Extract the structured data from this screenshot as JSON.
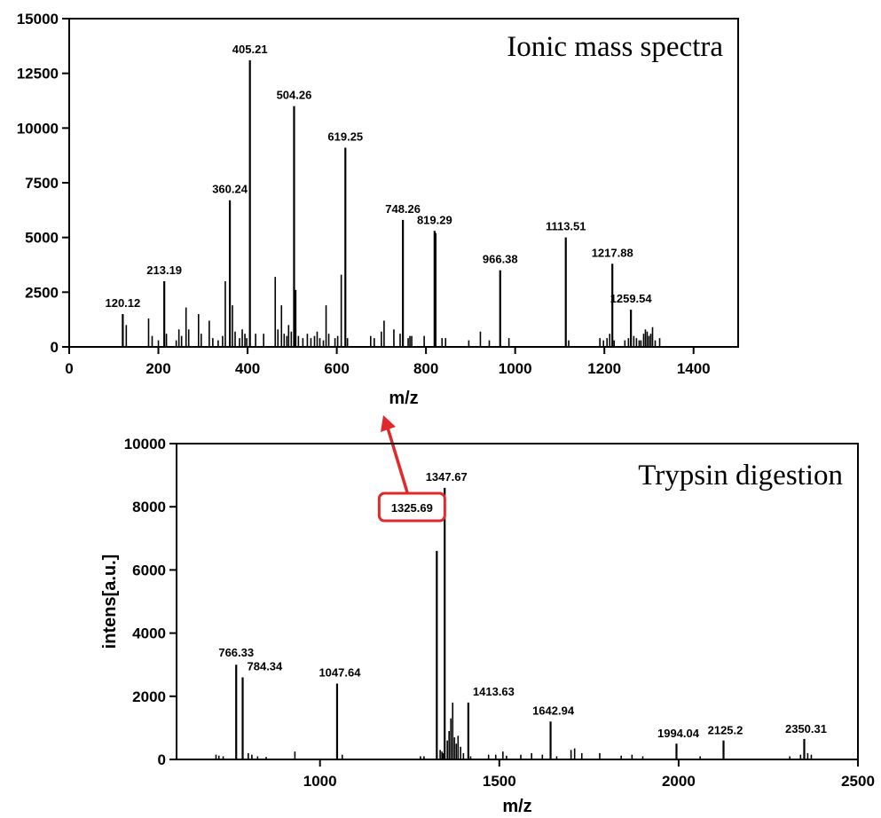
{
  "chart_data": [
    {
      "type": "bar",
      "title": "Ionic mass spectra",
      "xlabel": "m/z",
      "ylabel": "",
      "xlim": [
        0,
        1500
      ],
      "ylim": [
        0,
        15000
      ],
      "xticks": [
        "0",
        "200",
        "400",
        "600",
        "800",
        "1000",
        "1200",
        "1400"
      ],
      "yticks": [
        "0",
        "2500",
        "5000",
        "7500",
        "10000",
        "12500",
        "15000"
      ],
      "grid": false,
      "labeled_peaks": [
        {
          "x": 120.12,
          "y": 1500,
          "label": "120.12"
        },
        {
          "x": 213.19,
          "y": 3000,
          "label": "213.19"
        },
        {
          "x": 360.24,
          "y": 6700,
          "label": "360.24"
        },
        {
          "x": 405.21,
          "y": 13100,
          "label": "405.21"
        },
        {
          "x": 504.26,
          "y": 11000,
          "label": "504.26"
        },
        {
          "x": 619.25,
          "y": 9100,
          "label": "619.25"
        },
        {
          "x": 748.26,
          "y": 5800,
          "label": "748.26"
        },
        {
          "x": 819.29,
          "y": 5300,
          "label": "819.29"
        },
        {
          "x": 966.38,
          "y": 3500,
          "label": "966.38"
        },
        {
          "x": 1113.51,
          "y": 5000,
          "label": "1113.51"
        },
        {
          "x": 1217.88,
          "y": 3800,
          "label": "1217.88"
        },
        {
          "x": 1259.54,
          "y": 1700,
          "label": "1259.54"
        }
      ],
      "minor_peaks": [
        {
          "x": 128,
          "y": 1000
        },
        {
          "x": 178,
          "y": 1300
        },
        {
          "x": 186,
          "y": 500
        },
        {
          "x": 200,
          "y": 300
        },
        {
          "x": 218,
          "y": 600
        },
        {
          "x": 240,
          "y": 300
        },
        {
          "x": 246,
          "y": 800
        },
        {
          "x": 252,
          "y": 500
        },
        {
          "x": 262,
          "y": 1800
        },
        {
          "x": 268,
          "y": 800
        },
        {
          "x": 290,
          "y": 1500
        },
        {
          "x": 296,
          "y": 600
        },
        {
          "x": 314,
          "y": 1200
        },
        {
          "x": 322,
          "y": 400
        },
        {
          "x": 334,
          "y": 300
        },
        {
          "x": 344,
          "y": 500
        },
        {
          "x": 350,
          "y": 3000
        },
        {
          "x": 366,
          "y": 1900
        },
        {
          "x": 372,
          "y": 700
        },
        {
          "x": 382,
          "y": 400
        },
        {
          "x": 388,
          "y": 800
        },
        {
          "x": 394,
          "y": 600
        },
        {
          "x": 398,
          "y": 400
        },
        {
          "x": 418,
          "y": 600
        },
        {
          "x": 436,
          "y": 600
        },
        {
          "x": 462,
          "y": 3200
        },
        {
          "x": 468,
          "y": 800
        },
        {
          "x": 476,
          "y": 1900
        },
        {
          "x": 482,
          "y": 600
        },
        {
          "x": 488,
          "y": 500
        },
        {
          "x": 492,
          "y": 1000
        },
        {
          "x": 498,
          "y": 700
        },
        {
          "x": 508,
          "y": 2600
        },
        {
          "x": 514,
          "y": 500
        },
        {
          "x": 524,
          "y": 400
        },
        {
          "x": 534,
          "y": 600
        },
        {
          "x": 542,
          "y": 400
        },
        {
          "x": 550,
          "y": 500
        },
        {
          "x": 556,
          "y": 700
        },
        {
          "x": 562,
          "y": 400
        },
        {
          "x": 570,
          "y": 300
        },
        {
          "x": 576,
          "y": 1900
        },
        {
          "x": 582,
          "y": 600
        },
        {
          "x": 596,
          "y": 400
        },
        {
          "x": 602,
          "y": 500
        },
        {
          "x": 610,
          "y": 3300
        },
        {
          "x": 624,
          "y": 400
        },
        {
          "x": 676,
          "y": 500
        },
        {
          "x": 684,
          "y": 400
        },
        {
          "x": 700,
          "y": 700
        },
        {
          "x": 706,
          "y": 1200
        },
        {
          "x": 728,
          "y": 800
        },
        {
          "x": 742,
          "y": 600
        },
        {
          "x": 760,
          "y": 400
        },
        {
          "x": 764,
          "y": 500
        },
        {
          "x": 768,
          "y": 500
        },
        {
          "x": 796,
          "y": 500
        },
        {
          "x": 822,
          "y": 5200
        },
        {
          "x": 836,
          "y": 400
        },
        {
          "x": 844,
          "y": 400
        },
        {
          "x": 896,
          "y": 300
        },
        {
          "x": 922,
          "y": 700
        },
        {
          "x": 942,
          "y": 300
        },
        {
          "x": 986,
          "y": 400
        },
        {
          "x": 1120,
          "y": 300
        },
        {
          "x": 1190,
          "y": 400
        },
        {
          "x": 1198,
          "y": 300
        },
        {
          "x": 1206,
          "y": 400
        },
        {
          "x": 1212,
          "y": 600
        },
        {
          "x": 1222,
          "y": 300
        },
        {
          "x": 1246,
          "y": 300
        },
        {
          "x": 1254,
          "y": 400
        },
        {
          "x": 1266,
          "y": 500
        },
        {
          "x": 1272,
          "y": 400
        },
        {
          "x": 1278,
          "y": 300
        },
        {
          "x": 1282,
          "y": 300
        },
        {
          "x": 1288,
          "y": 600
        },
        {
          "x": 1292,
          "y": 800
        },
        {
          "x": 1296,
          "y": 700
        },
        {
          "x": 1300,
          "y": 500
        },
        {
          "x": 1304,
          "y": 600
        },
        {
          "x": 1308,
          "y": 900
        },
        {
          "x": 1314,
          "y": 300
        },
        {
          "x": 1324,
          "y": 400
        }
      ]
    },
    {
      "type": "bar",
      "title": "Trypsin digestion",
      "xlabel": "m/z",
      "ylabel": "intens[a.u.]",
      "xlim": [
        600,
        2500
      ],
      "ylim": [
        0,
        10000
      ],
      "xticks": [
        "1000",
        "1500",
        "2000",
        "2500"
      ],
      "yticks": [
        "0",
        "2000",
        "4000",
        "6000",
        "8000",
        "10000"
      ],
      "grid": false,
      "labeled_peaks": [
        {
          "x": 766.33,
          "y": 3000,
          "label": "766.33"
        },
        {
          "x": 784.34,
          "y": 2600,
          "label": "784.34"
        },
        {
          "x": 1047.64,
          "y": 2400,
          "label": "1047.64"
        },
        {
          "x": 1325.69,
          "y": 6600,
          "label": "1325.69",
          "highlighted": true
        },
        {
          "x": 1347.67,
          "y": 8600,
          "label": "1347.67"
        },
        {
          "x": 1413.63,
          "y": 1800,
          "label": "1413.63"
        },
        {
          "x": 1642.94,
          "y": 1200,
          "label": "1642.94"
        },
        {
          "x": 1994.04,
          "y": 500,
          "label": "1994.04"
        },
        {
          "x": 2125.2,
          "y": 600,
          "label": "2125.2"
        },
        {
          "x": 2350.31,
          "y": 650,
          "label": "2350.31"
        }
      ],
      "minor_peaks": [
        {
          "x": 710,
          "y": 150
        },
        {
          "x": 718,
          "y": 120
        },
        {
          "x": 730,
          "y": 100
        },
        {
          "x": 800,
          "y": 200
        },
        {
          "x": 810,
          "y": 150
        },
        {
          "x": 826,
          "y": 100
        },
        {
          "x": 850,
          "y": 80
        },
        {
          "x": 930,
          "y": 250
        },
        {
          "x": 1062,
          "y": 150
        },
        {
          "x": 1280,
          "y": 100
        },
        {
          "x": 1290,
          "y": 100
        },
        {
          "x": 1335,
          "y": 300
        },
        {
          "x": 1340,
          "y": 250
        },
        {
          "x": 1343,
          "y": 200
        },
        {
          "x": 1355,
          "y": 600
        },
        {
          "x": 1360,
          "y": 900
        },
        {
          "x": 1365,
          "y": 1300
        },
        {
          "x": 1370,
          "y": 1800
        },
        {
          "x": 1375,
          "y": 700
        },
        {
          "x": 1380,
          "y": 500
        },
        {
          "x": 1385,
          "y": 750
        },
        {
          "x": 1392,
          "y": 400
        },
        {
          "x": 1400,
          "y": 200
        },
        {
          "x": 1420,
          "y": 100
        },
        {
          "x": 1470,
          "y": 150
        },
        {
          "x": 1490,
          "y": 150
        },
        {
          "x": 1510,
          "y": 250
        },
        {
          "x": 1520,
          "y": 120
        },
        {
          "x": 1560,
          "y": 150
        },
        {
          "x": 1590,
          "y": 200
        },
        {
          "x": 1620,
          "y": 150
        },
        {
          "x": 1660,
          "y": 100
        },
        {
          "x": 1700,
          "y": 300
        },
        {
          "x": 1710,
          "y": 350
        },
        {
          "x": 1730,
          "y": 200
        },
        {
          "x": 1780,
          "y": 200
        },
        {
          "x": 1840,
          "y": 120
        },
        {
          "x": 1870,
          "y": 150
        },
        {
          "x": 1900,
          "y": 100
        },
        {
          "x": 2060,
          "y": 100
        },
        {
          "x": 2310,
          "y": 100
        },
        {
          "x": 2340,
          "y": 150
        },
        {
          "x": 2360,
          "y": 200
        },
        {
          "x": 2370,
          "y": 150
        }
      ]
    }
  ]
}
